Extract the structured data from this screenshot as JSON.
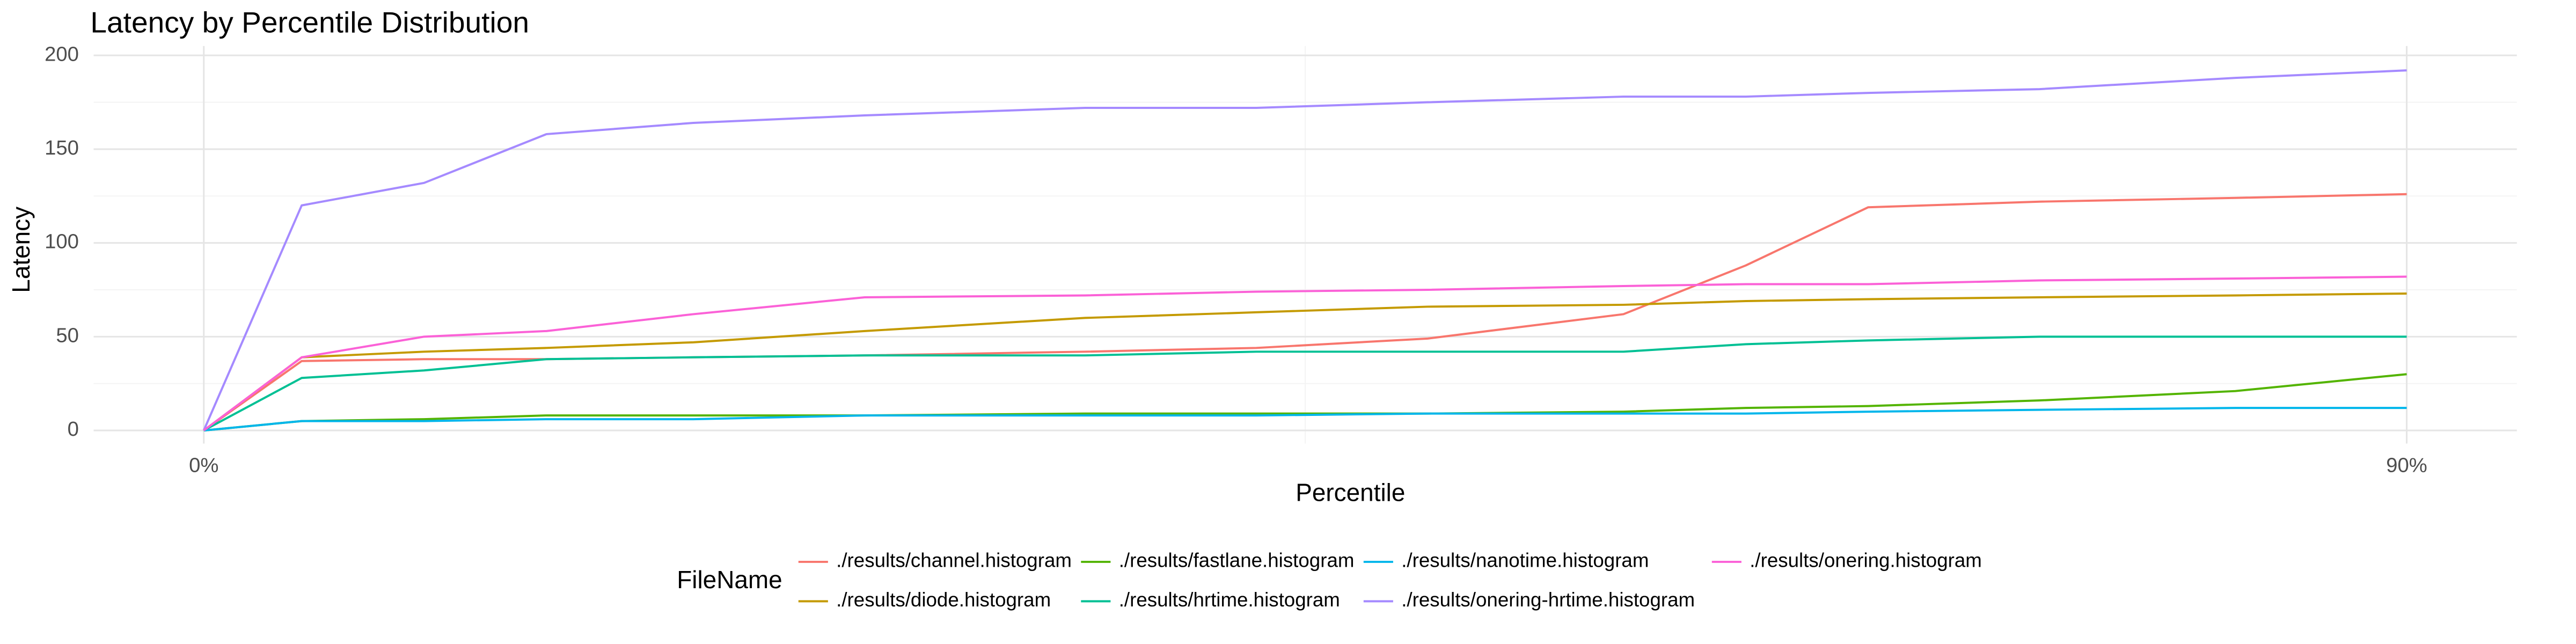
{
  "chart_data": {
    "type": "line",
    "title": "Latency by Percentile Distribution",
    "x_label": "Percentile",
    "y_label": "Latency",
    "legend_title": "FileName",
    "x": [
      0,
      4,
      9,
      14,
      20,
      27,
      36,
      43,
      50,
      58,
      63,
      68,
      75,
      83,
      90
    ],
    "xlim": [
      -4.5,
      94.5
    ],
    "xticks": [
      {
        "value": 0,
        "label": "0%"
      },
      {
        "value": 90,
        "label": "90%"
      }
    ],
    "xminor": [
      45
    ],
    "ylim": [
      -7,
      205
    ],
    "yticks": [
      0,
      50,
      100,
      150,
      200
    ],
    "yminor": [
      25,
      75,
      125,
      175
    ],
    "grid": true,
    "legend_position": "bottom",
    "series": [
      {
        "name": "./results/channel.histogram",
        "color": "#F8766D",
        "values": [
          0,
          37,
          38,
          38,
          39,
          40,
          42,
          44,
          49,
          62,
          88,
          119,
          122,
          124,
          126
        ]
      },
      {
        "name": "./results/diode.histogram",
        "color": "#C49A00",
        "values": [
          0,
          39,
          42,
          44,
          47,
          53,
          60,
          63,
          66,
          67,
          69,
          70,
          71,
          72,
          73
        ]
      },
      {
        "name": "./results/fastlane.histogram",
        "color": "#53B400",
        "values": [
          0,
          5,
          6,
          8,
          8,
          8,
          9,
          9,
          9,
          10,
          12,
          13,
          16,
          21,
          30
        ]
      },
      {
        "name": "./results/hrtime.histogram",
        "color": "#00C094",
        "values": [
          0,
          28,
          32,
          38,
          39,
          40,
          40,
          42,
          42,
          42,
          46,
          48,
          50,
          50,
          50
        ]
      },
      {
        "name": "./results/nanotime.histogram",
        "color": "#00B6EB",
        "values": [
          0,
          5,
          5,
          6,
          6,
          8,
          8,
          8,
          9,
          9,
          9,
          10,
          11,
          12,
          12
        ]
      },
      {
        "name": "./results/onering-hrtime.histogram",
        "color": "#A58AFF",
        "values": [
          0,
          120,
          132,
          158,
          164,
          168,
          172,
          172,
          175,
          178,
          178,
          180,
          182,
          188,
          192
        ]
      },
      {
        "name": "./results/onering.histogram",
        "color": "#FB61D7",
        "values": [
          0,
          39,
          50,
          53,
          62,
          71,
          72,
          74,
          75,
          77,
          78,
          78,
          80,
          81,
          82
        ]
      }
    ]
  }
}
